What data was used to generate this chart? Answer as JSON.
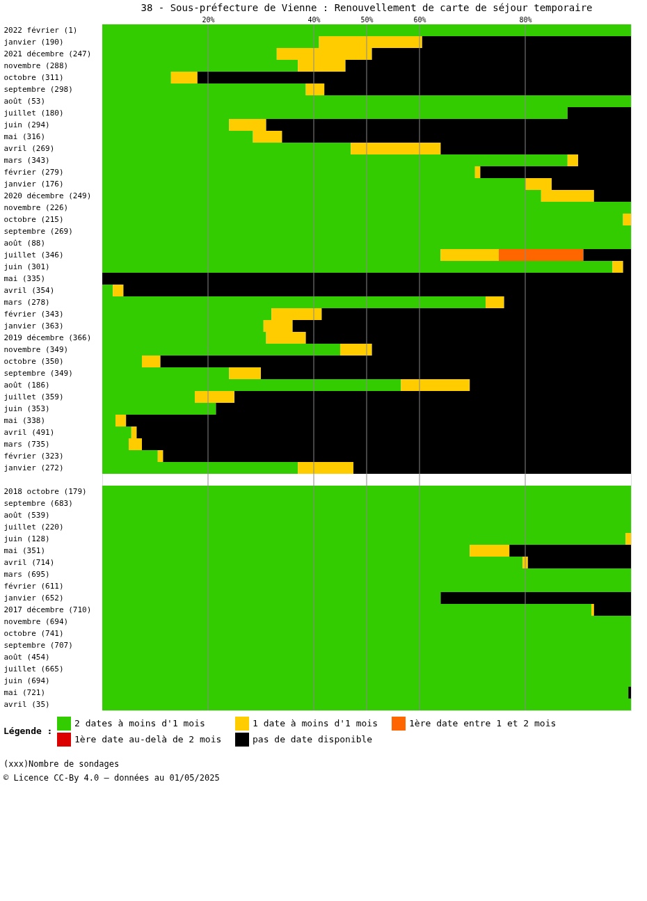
{
  "chart_data": {
    "type": "bar",
    "orientation": "horizontal",
    "stacked": true,
    "title": "38 - Sous-préfecture de Vienne : Renouvellement de carte de séjour temporaire",
    "legend_title": "Légende :",
    "annotations": [
      "(xxx)Nombre de sondages",
      "© Licence CC-By 4.0 — données au 01/05/2025"
    ],
    "categories": [
      "2022 février (1)",
      "     janvier (190)",
      "2021 décembre (247)",
      "     novembre (288)",
      "     octobre (311)",
      "     septembre (298)",
      "     août (53)",
      "     juillet (180)",
      "     juin (294)",
      "     mai (316)",
      "     avril (269)",
      "     mars (343)",
      "     février (279)",
      "     janvier (176)",
      "2020 décembre (249)",
      "     novembre (226)",
      "     octobre (215)",
      "     septembre (269)",
      "     août (88)",
      "     juillet (346)",
      "     juin (301)",
      "     mai (335)",
      "     avril (354)",
      "     mars (278)",
      "     février (343)",
      "     janvier (363)",
      "2019 décembre (366)",
      "     novembre (349)",
      "     octobre (350)",
      "     septembre (349)",
      "     août (186)",
      "     juillet (359)",
      "     juin (353)",
      "     mai (338)",
      "     avril (491)",
      "     mars (735)",
      "     février (323)",
      "     janvier (272)",
      null,
      "2018 octobre (179)",
      "     septembre (683)",
      "     août (539)",
      "     juillet (220)",
      "     juin (128)",
      "     mai (351)",
      "     avril (714)",
      "     mars (695)",
      "     février (611)",
      "     janvier (652)",
      "2017 décembre (710)",
      "     novembre (694)",
      "     octobre (741)",
      "     septembre (707)",
      "     août (454)",
      "     juillet (665)",
      "     juin (694)",
      "     mai (721)",
      "     avril (35)"
    ],
    "series": [
      {
        "name": "2 dates à moins d'1 mois",
        "color": "#33cc00",
        "values": [
          100,
          41,
          33,
          37,
          13,
          38.5,
          100,
          88,
          24,
          28.5,
          47,
          88,
          70.5,
          80,
          83,
          100,
          98.5,
          100,
          100,
          64,
          96.5,
          null,
          2,
          72.5,
          32,
          30.5,
          31,
          45,
          7.5,
          24,
          56.5,
          17.5,
          21.5,
          2.5,
          5.5,
          5,
          10.5,
          37,
          null,
          100,
          100,
          100,
          100,
          99,
          69.5,
          79.5,
          100,
          100,
          64,
          92.5,
          100,
          100,
          100,
          100,
          100,
          100,
          99.5,
          100
        ]
      },
      {
        "name": "1 date à moins d'1 mois",
        "color": "#ffcc00",
        "values": [
          null,
          19.5,
          18,
          9,
          5,
          3.5,
          null,
          null,
          7,
          5.5,
          17,
          2,
          1,
          5,
          10,
          null,
          1.5,
          null,
          null,
          11,
          2,
          null,
          2,
          3.5,
          9.5,
          5.5,
          7.5,
          6,
          3.5,
          6,
          13,
          7.5,
          null,
          2,
          1,
          2.5,
          1,
          10.5,
          null,
          null,
          null,
          null,
          null,
          1,
          7.5,
          1,
          null,
          null,
          null,
          0.5,
          null,
          null,
          null,
          null,
          null,
          null,
          null,
          null
        ]
      },
      {
        "name": "1ère date entre 1 et 2 mois",
        "color": "#ff6600",
        "values": [
          null,
          null,
          null,
          null,
          null,
          null,
          null,
          null,
          null,
          null,
          null,
          null,
          null,
          null,
          null,
          null,
          null,
          null,
          null,
          16,
          null,
          null,
          null,
          null,
          null,
          null,
          null,
          null,
          null,
          null,
          null,
          null,
          null,
          null,
          null,
          null,
          null,
          null,
          null,
          null,
          null,
          null,
          null,
          null,
          null,
          null,
          null,
          null,
          null,
          null,
          null,
          null,
          null,
          null,
          null,
          null,
          null,
          null
        ]
      },
      {
        "name": "1ère date au-delà de 2 mois",
        "color": "#dd0000",
        "values": [
          null,
          null,
          null,
          null,
          null,
          null,
          null,
          null,
          null,
          null,
          null,
          null,
          null,
          null,
          null,
          null,
          null,
          null,
          null,
          null,
          null,
          null,
          null,
          null,
          null,
          null,
          null,
          null,
          null,
          null,
          null,
          null,
          null,
          null,
          null,
          null,
          null,
          null,
          null,
          null,
          null,
          null,
          null,
          null,
          null,
          null,
          null,
          null,
          null,
          null,
          null,
          null,
          null,
          null,
          null,
          null,
          null,
          null
        ]
      },
      {
        "name": "pas de date disponible",
        "color": "#000000",
        "values": [
          null,
          39.5,
          49,
          54,
          82,
          58,
          null,
          12,
          69,
          66,
          36,
          10,
          28.5,
          15,
          7,
          null,
          null,
          null,
          null,
          9,
          1.5,
          100,
          96,
          24,
          58.5,
          64,
          61.5,
          49,
          89,
          70,
          30.5,
          75,
          78.5,
          95.5,
          93.5,
          92.5,
          88.5,
          52.5,
          null,
          null,
          null,
          null,
          null,
          null,
          23,
          19.5,
          null,
          null,
          36,
          7,
          null,
          null,
          null,
          null,
          null,
          null,
          0.5,
          null
        ]
      }
    ],
    "xlim": [
      0,
      100
    ],
    "xticks": [
      {
        "value": 20,
        "label": "20%"
      },
      {
        "value": 40,
        "label": "40%"
      },
      {
        "value": 50,
        "label": "50%"
      },
      {
        "value": 60,
        "label": "60%"
      },
      {
        "value": 80,
        "label": "80%"
      }
    ],
    "grid": "x",
    "legend": "bottom"
  }
}
